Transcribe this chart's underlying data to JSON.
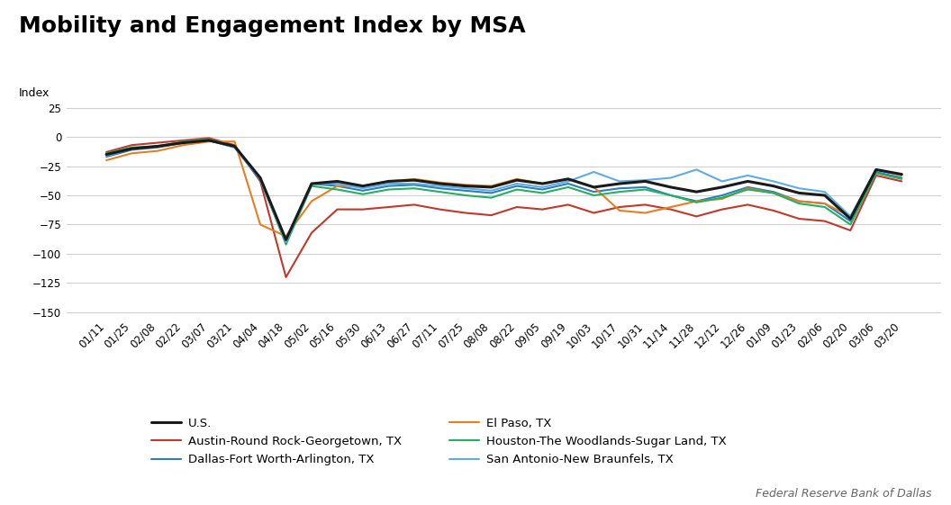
{
  "title": "Mobility and Engagement Index by MSA",
  "ylabel": "Index",
  "source": "Federal Reserve Bank of Dallas",
  "ylim": [
    -155,
    35
  ],
  "yticks": [
    25,
    0,
    -25,
    -50,
    -75,
    -100,
    -125,
    -150
  ],
  "x_labels": [
    "01/11",
    "01/25",
    "02/08",
    "02/22",
    "03/07",
    "03/21",
    "04/04",
    "04/18",
    "05/02",
    "05/16",
    "05/30",
    "06/13",
    "06/27",
    "07/11",
    "07/25",
    "08/08",
    "08/22",
    "09/05",
    "09/19",
    "10/03",
    "10/17",
    "10/31",
    "11/14",
    "11/28",
    "12/12",
    "12/26",
    "01/09",
    "01/23",
    "02/06",
    "02/20",
    "03/06",
    "03/20"
  ],
  "series": {
    "U.S.": {
      "color": "#1a1a1a",
      "linewidth": 2.2,
      "zorder": 5,
      "values": [
        -15,
        -10,
        -8,
        -5,
        -3,
        -8,
        -35,
        -88,
        -40,
        -38,
        -42,
        -38,
        -37,
        -40,
        -42,
        -43,
        -37,
        -40,
        -36,
        -43,
        -40,
        -38,
        -43,
        -47,
        -43,
        -38,
        -42,
        -48,
        -50,
        -70,
        -28,
        -32
      ]
    },
    "Austin-Round Rock-Georgetown, TX": {
      "color": "#c0392b",
      "linewidth": 1.5,
      "zorder": 4,
      "values": [
        -13,
        -7,
        -5,
        -3,
        -1,
        -7,
        -38,
        -120,
        -82,
        -62,
        -62,
        -60,
        -58,
        -62,
        -65,
        -67,
        -60,
        -62,
        -58,
        -65,
        -60,
        -58,
        -62,
        -68,
        -62,
        -58,
        -63,
        -70,
        -72,
        -80,
        -33,
        -38
      ]
    },
    "Dallas-Fort Worth-Arlington, TX": {
      "color": "#2980b9",
      "linewidth": 1.5,
      "zorder": 4,
      "values": [
        -17,
        -11,
        -9,
        -5,
        -3,
        -9,
        -37,
        -90,
        -40,
        -42,
        -46,
        -42,
        -41,
        -44,
        -46,
        -48,
        -42,
        -45,
        -40,
        -47,
        -44,
        -43,
        -50,
        -55,
        -50,
        -43,
        -47,
        -55,
        -57,
        -72,
        -30,
        -35
      ]
    },
    "El Paso, TX": {
      "color": "#e67e22",
      "linewidth": 1.5,
      "zorder": 4,
      "values": [
        -20,
        -14,
        -12,
        -7,
        -4,
        -4,
        -75,
        -85,
        -55,
        -42,
        -42,
        -38,
        -36,
        -39,
        -41,
        -42,
        -36,
        -40,
        -36,
        -43,
        -63,
        -65,
        -60,
        -55,
        -53,
        -44,
        -48,
        -55,
        -57,
        -68,
        -28,
        -33
      ]
    },
    "Houston-The Woodlands-Sugar Land, TX": {
      "color": "#27ae60",
      "linewidth": 1.5,
      "zorder": 4,
      "values": [
        -14,
        -9,
        -8,
        -4,
        -2,
        -8,
        -36,
        -92,
        -42,
        -45,
        -49,
        -45,
        -44,
        -47,
        -50,
        -52,
        -45,
        -48,
        -43,
        -50,
        -47,
        -45,
        -50,
        -56,
        -52,
        -45,
        -48,
        -57,
        -60,
        -75,
        -31,
        -36
      ]
    },
    "San Antonio-New Braunfels, TX": {
      "color": "#5dade2",
      "linewidth": 1.5,
      "zorder": 4,
      "values": [
        -16,
        -10,
        -8,
        -5,
        -3,
        -9,
        -36,
        -90,
        -40,
        -40,
        -44,
        -40,
        -40,
        -42,
        -44,
        -46,
        -40,
        -43,
        -38,
        -30,
        -38,
        -37,
        -35,
        -28,
        -38,
        -33,
        -38,
        -44,
        -47,
        -68,
        -28,
        -32
      ]
    }
  },
  "background_color": "#ffffff",
  "grid_color": "#d0d0d0",
  "title_fontsize": 18,
  "label_fontsize": 9,
  "tick_fontsize": 8.5,
  "legend_fontsize": 9.5
}
